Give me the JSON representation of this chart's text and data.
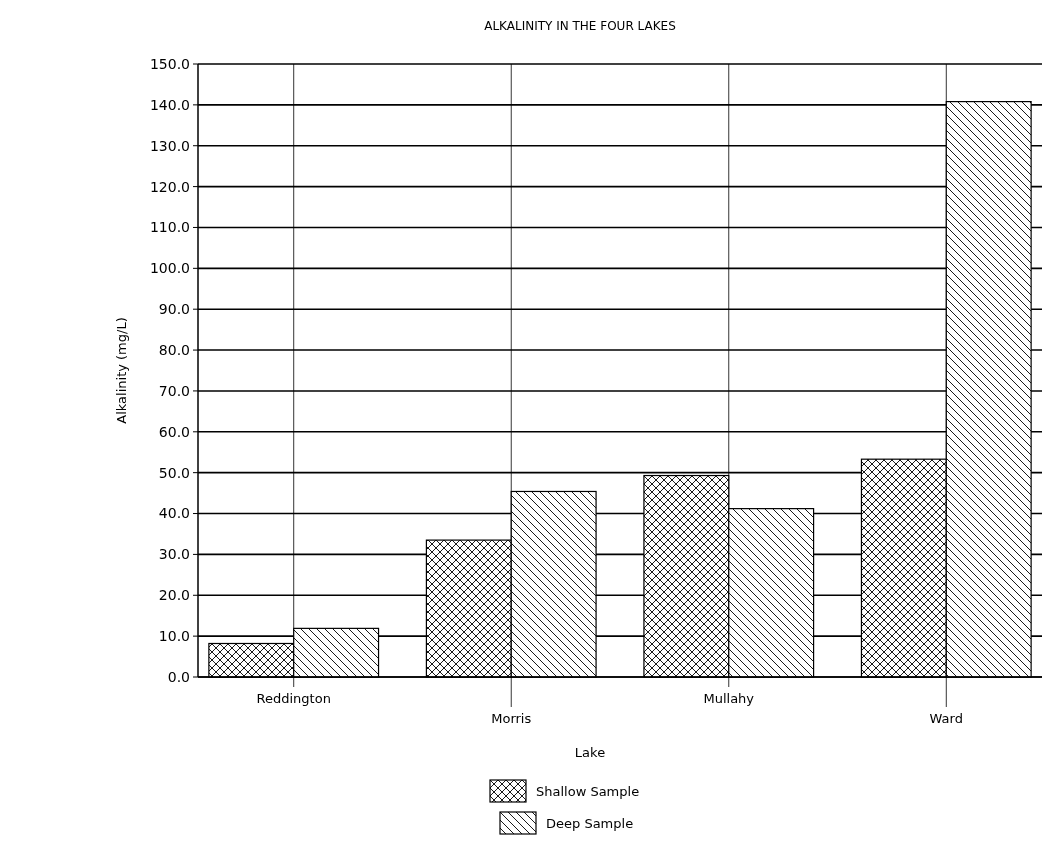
{
  "chart_data": {
    "type": "bar",
    "title": "ALKALINITY IN THE FOUR LAKES",
    "xlabel": "Lake",
    "ylabel": "Alkalinity (mg/L)",
    "categories": [
      "Reddington",
      "Morris",
      "Mullahy",
      "Ward"
    ],
    "series": [
      {
        "name": "Shallow Sample",
        "color": "#000000",
        "values": [
          8.2,
          33.5,
          49.3,
          53.3
        ]
      },
      {
        "name": "Deep Sample",
        "color": "#000000",
        "values": [
          11.9,
          45.4,
          41.2,
          140.8
        ]
      }
    ],
    "ylim": [
      0,
      150
    ],
    "yticks": [
      {
        "value": 0,
        "label": "0.0"
      },
      {
        "value": 10,
        "label": "10.0"
      },
      {
        "value": 20,
        "label": "20.0"
      },
      {
        "value": 30,
        "label": "30.0"
      },
      {
        "value": 40,
        "label": "40.0"
      },
      {
        "value": 50,
        "label": "50.0"
      },
      {
        "value": 60,
        "label": "60.0"
      },
      {
        "value": 70,
        "label": "70.0"
      },
      {
        "value": 80,
        "label": "80.0"
      },
      {
        "value": 90,
        "label": "90.0"
      },
      {
        "value": 100,
        "label": "100.0"
      },
      {
        "value": 110,
        "label": "110.0"
      },
      {
        "value": 120,
        "label": "120.0"
      },
      {
        "value": 130,
        "label": "130.0"
      },
      {
        "value": 140,
        "label": "140.0"
      },
      {
        "value": 150,
        "label": "150.0"
      }
    ],
    "grid": true,
    "legend": "bottom"
  }
}
